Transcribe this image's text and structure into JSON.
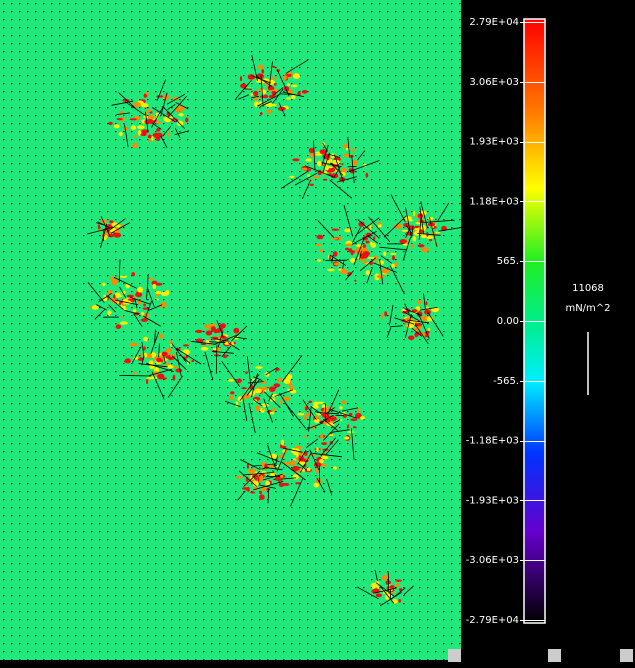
{
  "colorbar": {
    "labels": [
      "2.79E+04",
      "3.06E+03",
      "1.93E+03",
      "1.18E+03",
      "565.",
      "0.00",
      "-565.",
      "-1.18E+03",
      "-1.93E+03",
      "-3.06E+03",
      "-2.79E+04"
    ],
    "scale_value": "11068",
    "units": "mN/m^2"
  }
}
